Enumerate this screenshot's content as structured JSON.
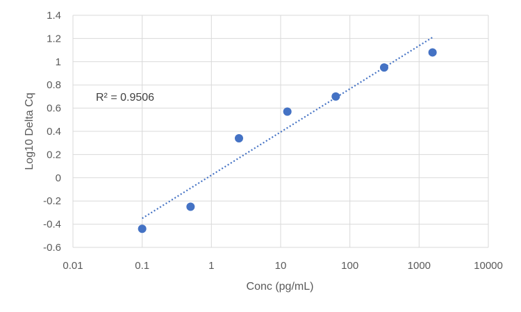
{
  "chart_data": {
    "type": "scatter",
    "xlabel": "Conc (pg/mL)",
    "ylabel": "Log10 Delta Cq",
    "x_scale": "log",
    "xlim": [
      0.01,
      10000
    ],
    "ylim": [
      -0.6,
      1.4
    ],
    "x_ticks": [
      "0.01",
      "0.1",
      "1",
      "10",
      "100",
      "1000",
      "10000"
    ],
    "y_ticks": [
      "-0.6",
      "-0.4",
      "-0.2",
      "0",
      "0.2",
      "0.4",
      "0.6",
      "0.8",
      "1",
      "1.2",
      "1.4"
    ],
    "grid": true,
    "series": [
      {
        "x": [
          0.1,
          0.5,
          2.5,
          12.5,
          62.5,
          312.5,
          1562.5
        ],
        "y": [
          -0.44,
          -0.25,
          0.34,
          0.57,
          0.7,
          0.95,
          1.08
        ],
        "color": "#4472c4"
      }
    ],
    "trendline": {
      "style": "dotted",
      "color": "#4472c4",
      "x": [
        0.1,
        1562.5
      ],
      "y": [
        -0.35,
        1.21
      ]
    },
    "annotation": "R² = 0.9506"
  }
}
